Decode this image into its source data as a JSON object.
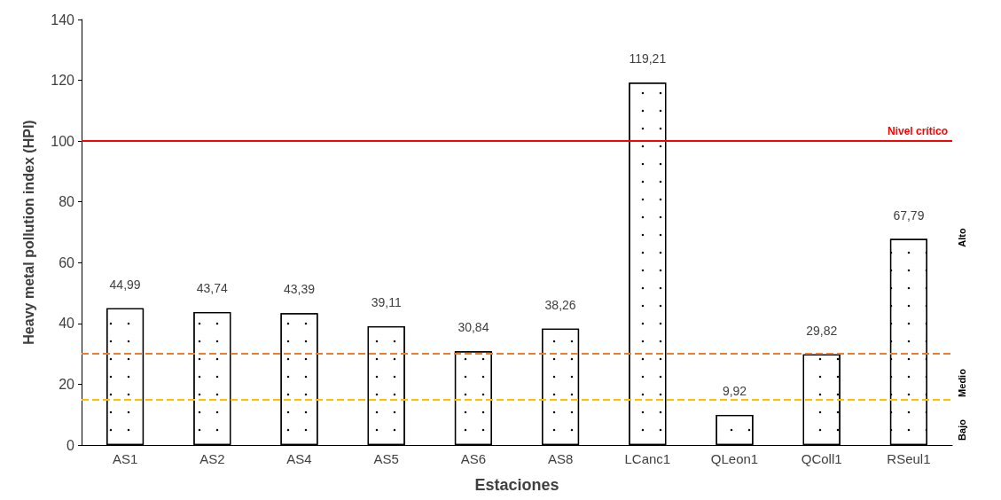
{
  "chart_data": {
    "type": "bar",
    "xlabel": "Estaciones",
    "ylabel": "Heavy metal pollution index (HPI)",
    "categories": [
      "AS1",
      "AS2",
      "AS4",
      "AS5",
      "AS6",
      "AS8",
      "LCanc1",
      "QLeon1",
      "QColl1",
      "RSeul1"
    ],
    "values": [
      44.99,
      43.74,
      43.39,
      39.11,
      30.84,
      38.26,
      119.21,
      9.92,
      29.82,
      67.79
    ],
    "value_labels": [
      "44,99",
      "43,74",
      "43,39",
      "39,11",
      "30,84",
      "38,26",
      "119,21",
      "9,92",
      "29,82",
      "67,79"
    ],
    "color": "#ffffff",
    "ylim": [
      0,
      140
    ],
    "yticks": [
      0,
      20,
      40,
      60,
      80,
      100,
      120,
      140
    ],
    "grid": false,
    "ref_lines": [
      {
        "axis": "y",
        "value": 100,
        "label": "Nivel crítico",
        "color": "#ff0000",
        "line_style": "solid"
      },
      {
        "axis": "y",
        "value": 30,
        "label": null,
        "color": "#ed7d31",
        "line_style": "dashed"
      },
      {
        "axis": "y",
        "value": 15,
        "label": null,
        "color": "#ffc000",
        "line_style": "dashed"
      }
    ],
    "annotations": [
      "Alto",
      "Medio",
      "Bajo"
    ]
  }
}
